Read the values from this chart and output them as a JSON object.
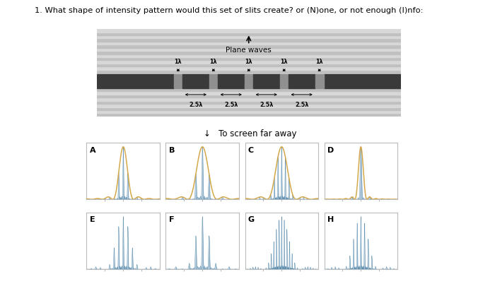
{
  "title": "1. What shape of intensity pattern would this set of slits create? or (N)one, or not enough (I)nfo:",
  "plane_waves_label": "Plane waves",
  "to_screen_label": "To screen far away",
  "panel_labels": [
    "A",
    "B",
    "C",
    "D",
    "E",
    "F",
    "G",
    "H"
  ],
  "bg_color": "#ffffff",
  "slit_barrier_color": "#3a3a3a",
  "slit_gap_color": "#888888",
  "wave_stripe_colors": [
    "#c8c8c8",
    "#e0e0e0"
  ],
  "envelope_color": "#d4a84b",
  "interference_color": "#8aaec8",
  "interference_line_color": "#6090b0",
  "panel_border_color": "#bbbbbb",
  "panel_configs": [
    {
      "N": 5,
      "d": 2.5,
      "sw": 1.0,
      "show_env": true,
      "x_range": 4.0
    },
    {
      "N": 5,
      "d": 2.5,
      "sw": 0.6,
      "show_env": true,
      "x_range": 4.0
    },
    {
      "N": 5,
      "d": 2.5,
      "sw": 0.35,
      "show_env": true,
      "x_range": 4.0
    },
    {
      "N": 5,
      "d": 2.5,
      "sw": 0.2,
      "show_env": true,
      "x_range": 4.0
    },
    {
      "N": 5,
      "d": 2.5,
      "sw": 1.0,
      "show_env": false,
      "x_range": 4.0
    },
    {
      "N": 5,
      "d": 2.5,
      "sw": 0.6,
      "show_env": false,
      "x_range": 4.0
    },
    {
      "N": 5,
      "d": 2.5,
      "sw": 0.35,
      "show_env": false,
      "x_range": 4.0
    },
    {
      "N": 5,
      "d": 2.5,
      "sw": 0.2,
      "show_env": false,
      "x_range": 4.0
    }
  ]
}
